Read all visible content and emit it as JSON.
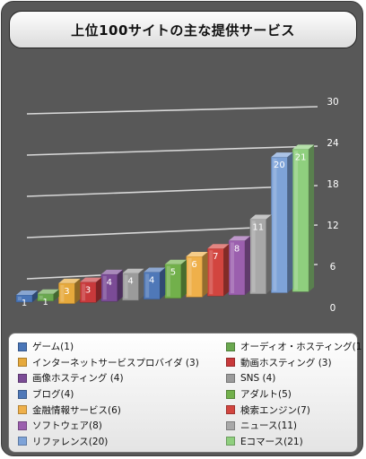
{
  "title": "上位100サイトの主な提供サービス",
  "chart_data": {
    "type": "bar",
    "title": "上位100サイトの主な提供サービス",
    "xlabel": "",
    "ylabel": "",
    "ylim": [
      0,
      30
    ],
    "yticks": [
      "0",
      "6",
      "12",
      "18",
      "24",
      "30"
    ],
    "grid": true,
    "legend_position": "bottom",
    "categories": [
      "ゲーム(1)",
      "オーディオ・ホスティング(1)",
      "インターネットサービスプロバイダ (3)",
      "動画ホスティング (3)",
      "画像ホスティング (4)",
      "SNS (4)",
      "ブログ(4)",
      "アダルト(5)",
      "金融情報サービス(6)",
      "検索エンジン(7)",
      "ソフトウェア(8)",
      "ニュース(11)",
      "リファレンス(20)",
      "Eコマース(21)"
    ],
    "values": [
      1,
      1,
      3,
      3,
      4,
      4,
      4,
      5,
      6,
      7,
      8,
      11,
      20,
      21
    ],
    "value_labels": [
      "1",
      "1",
      "3",
      "3",
      "4",
      "4",
      "4",
      "5",
      "6",
      "7",
      "8",
      "11",
      "20",
      "21"
    ],
    "colors": [
      "#4a76b8",
      "#6aa84f",
      "#e6a93c",
      "#c8393b",
      "#7b4b96",
      "#9b9b9b",
      "#4f78b8",
      "#72b04b",
      "#efb04a",
      "#d2453f",
      "#9b5fae",
      "#a8a8a8",
      "#7ea3d8",
      "#8fcf7e"
    ]
  },
  "legend": {
    "left": [
      {
        "label": "ゲーム(1)",
        "color": "#4a76b8"
      },
      {
        "label": "インターネットサービスプロバイダ (3)",
        "color": "#e6a93c"
      },
      {
        "label": "画像ホスティング (4)",
        "color": "#7b4b96"
      },
      {
        "label": "ブログ(4)",
        "color": "#4f78b8"
      },
      {
        "label": "金融情報サービス(6)",
        "color": "#efb04a"
      },
      {
        "label": "ソフトウェア(8)",
        "color": "#9b5fae"
      },
      {
        "label": "リファレンス(20)",
        "color": "#7ea3d8"
      }
    ],
    "right": [
      {
        "label": "オーディオ・ホスティング(1)",
        "color": "#6aa84f"
      },
      {
        "label": "動画ホスティング (3)",
        "color": "#c8393b"
      },
      {
        "label": "SNS (4)",
        "color": "#9b9b9b"
      },
      {
        "label": "アダルト(5)",
        "color": "#72b04b"
      },
      {
        "label": "検索エンジン(7)",
        "color": "#d2453f"
      },
      {
        "label": "ニュース(11)",
        "color": "#a8a8a8"
      },
      {
        "label": "Eコマース(21)",
        "color": "#8fcf7e"
      }
    ]
  }
}
